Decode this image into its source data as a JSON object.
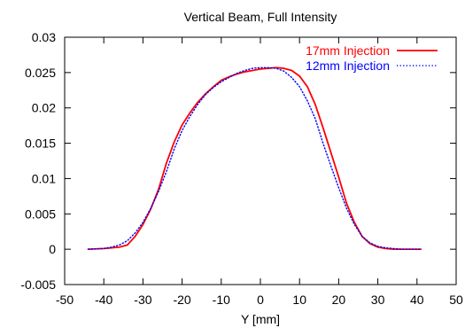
{
  "chart_data": {
    "type": "line",
    "title": "Vertical Beam, Full Intensity",
    "xlabel": "Y [mm]",
    "ylabel": "",
    "xlim": [
      -50,
      50
    ],
    "ylim": [
      -0.005,
      0.03
    ],
    "xticks": [
      -50,
      -40,
      -30,
      -20,
      -10,
      0,
      10,
      20,
      30,
      40,
      50
    ],
    "yticks": [
      -0.005,
      0,
      0.005,
      0.01,
      0.015,
      0.02,
      0.025,
      0.03
    ],
    "ytick_labels": [
      "-0.005",
      "0",
      "0.005",
      "0.01",
      "0.015",
      "0.02",
      "0.025",
      "0.03"
    ],
    "grid": false,
    "legend_position": "top-right",
    "series": [
      {
        "name": "17mm Injection",
        "color": "#ff0000",
        "dash": "solid",
        "x": [
          -44,
          -40,
          -38,
          -36,
          -34,
          -32,
          -30,
          -28,
          -26,
          -24,
          -22,
          -20,
          -18,
          -16,
          -14,
          -12,
          -10,
          -8,
          -6,
          -4,
          -2,
          0,
          2,
          4,
          6,
          8,
          10,
          12,
          14,
          16,
          18,
          20,
          22,
          24,
          26,
          28,
          30,
          32,
          34,
          36,
          38,
          41
        ],
        "y": [
          0,
          0.0001,
          0.0002,
          0.0003,
          0.0006,
          0.0018,
          0.0035,
          0.0057,
          0.0085,
          0.0122,
          0.0152,
          0.0176,
          0.0193,
          0.0208,
          0.022,
          0.023,
          0.0239,
          0.0244,
          0.0248,
          0.0251,
          0.0253,
          0.0255,
          0.0256,
          0.0257,
          0.0256,
          0.0253,
          0.0245,
          0.023,
          0.0205,
          0.0172,
          0.0137,
          0.0102,
          0.0065,
          0.0038,
          0.0018,
          0.0008,
          0.0003,
          0.0001,
          0,
          0,
          0,
          0
        ]
      },
      {
        "name": "12mm Injection",
        "color": "#0000ff",
        "dash": "dotted",
        "x": [
          -44,
          -40,
          -38,
          -36,
          -34,
          -32,
          -30,
          -28,
          -26,
          -24,
          -22,
          -20,
          -18,
          -16,
          -14,
          -12,
          -10,
          -8,
          -6,
          -4,
          -2,
          0,
          2,
          4,
          6,
          8,
          10,
          12,
          14,
          16,
          18,
          20,
          22,
          24,
          26,
          28,
          30,
          32,
          34,
          36,
          38,
          41
        ],
        "y": [
          0,
          0.0001,
          0.0003,
          0.0006,
          0.0012,
          0.0023,
          0.0038,
          0.0058,
          0.0082,
          0.011,
          0.0142,
          0.0168,
          0.0188,
          0.0205,
          0.0219,
          0.0229,
          0.0237,
          0.0243,
          0.0249,
          0.0253,
          0.0256,
          0.0257,
          0.0257,
          0.0256,
          0.0252,
          0.0243,
          0.023,
          0.021,
          0.0185,
          0.015,
          0.0118,
          0.0087,
          0.0058,
          0.0035,
          0.0018,
          0.0009,
          0.0004,
          0.0002,
          0.0001,
          0,
          0,
          0
        ]
      }
    ]
  }
}
